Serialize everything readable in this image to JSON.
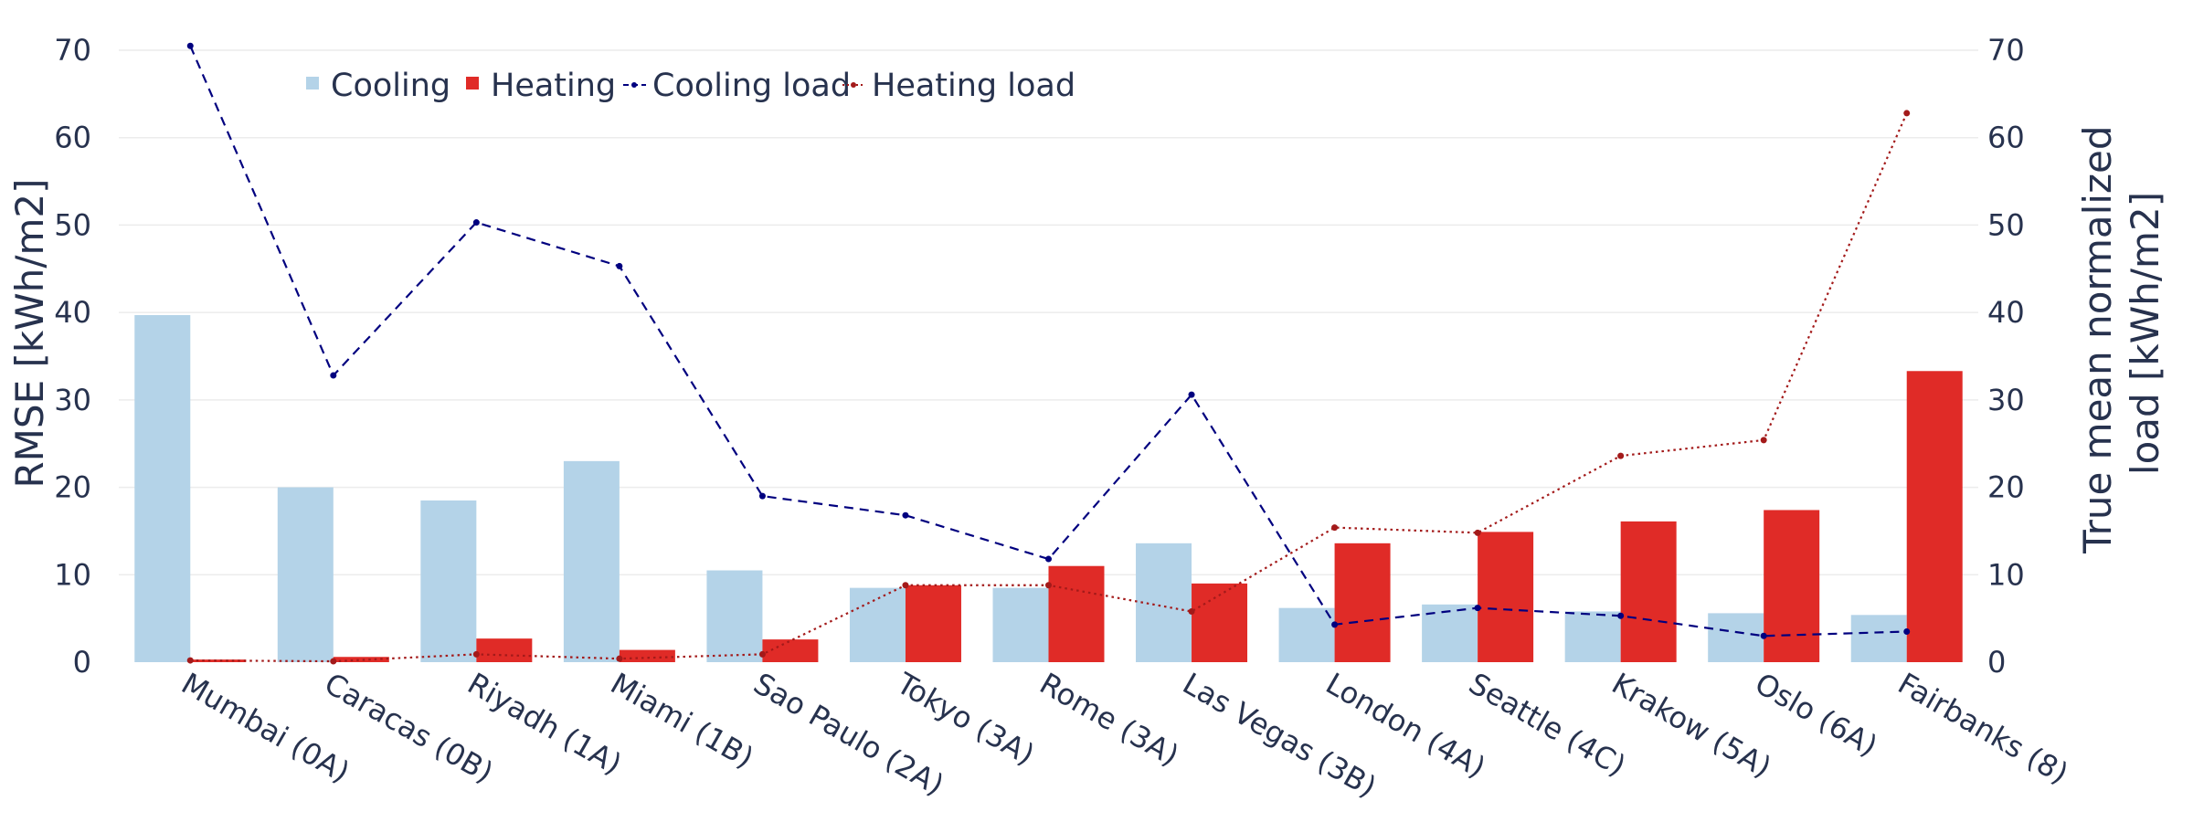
{
  "chart_data": {
    "type": "bar",
    "categories": [
      "Mumbai (0A)",
      "Caracas (0B)",
      "Riyadh (1A)",
      "Miami (1B)",
      "Sao Paulo (2A)",
      "Tokyo (3A)",
      "Rome (3A)",
      "Las Vegas (3B)",
      "London (4A)",
      "Seattle (4C)",
      "Krakow (5A)",
      "Oslo (6A)",
      "Fairbanks (8)"
    ],
    "bar_series": [
      {
        "name": "Cooling",
        "color": "#b4d3e8",
        "values": [
          39.7,
          20.0,
          18.5,
          23.0,
          10.5,
          8.5,
          8.5,
          13.6,
          6.2,
          6.6,
          5.8,
          5.6,
          5.4
        ]
      },
      {
        "name": "Heating",
        "color": "#e02b27",
        "values": [
          0.3,
          0.6,
          2.7,
          1.4,
          2.6,
          8.8,
          11.0,
          9.0,
          13.6,
          14.9,
          16.1,
          17.4,
          33.3
        ]
      }
    ],
    "line_series": [
      {
        "name": "Cooling load",
        "color": "#00007f",
        "dash": "dashed",
        "values": [
          70.5,
          32.8,
          50.3,
          45.3,
          19.0,
          16.8,
          11.8,
          30.6,
          4.3,
          6.2,
          5.3,
          3.0,
          3.5
        ]
      },
      {
        "name": "Heating load",
        "color": "#a31a1a",
        "dash": "dotted",
        "values": [
          0.2,
          0.1,
          0.9,
          0.4,
          0.9,
          8.8,
          8.8,
          5.8,
          15.4,
          14.8,
          23.6,
          25.4,
          62.8
        ]
      }
    ],
    "ylabel": "RMSE [kWh/m2]",
    "y2label": "True mean normalized load [kWh/m2]",
    "y2label_lines": [
      "True mean normalized",
      "load [kWh/m2]"
    ],
    "ylim": [
      0,
      70
    ],
    "y2lim": [
      0,
      70
    ],
    "yticks": [
      0,
      10,
      20,
      30,
      40,
      50,
      60,
      70
    ],
    "grid": true,
    "legend_position": "top-left"
  }
}
